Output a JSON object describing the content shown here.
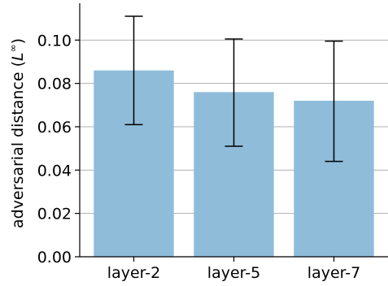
{
  "chart_data": {
    "type": "bar",
    "categories": [
      "layer-2",
      "layer-5",
      "layer-7"
    ],
    "values": [
      0.086,
      0.076,
      0.072
    ],
    "error_low": [
      0.061,
      0.051,
      0.044
    ],
    "error_high": [
      0.111,
      0.1005,
      0.0995
    ],
    "ylabel": "adversarial distance (L∞)",
    "ylabel_main": "adversarial distance (",
    "ylabel_symbol": "L",
    "ylabel_superscript": "∞",
    "ylabel_close": ")",
    "ylim": [
      0,
      0.117
    ],
    "yticks": [
      0.0,
      0.02,
      0.04,
      0.06,
      0.08,
      0.1
    ],
    "ytick_labels": [
      "0.00",
      "0.02",
      "0.04",
      "0.06",
      "0.08",
      "0.10"
    ],
    "grid": "y",
    "bar_color": "#8fbcd9",
    "error_color": "#000000"
  }
}
